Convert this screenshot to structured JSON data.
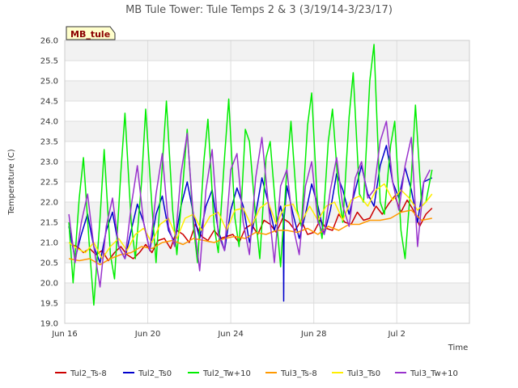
{
  "chart_data": {
    "type": "line",
    "title": "MB Tule Tower: Tule Temps 2 & 3 (3/19/14-3/23/17)",
    "xlabel": "Time",
    "ylabel": "Temperature (C)",
    "badge": "MB_tule",
    "xlim": [
      0,
      19.5
    ],
    "ylim": [
      19.0,
      26.0
    ],
    "y_ticks": [
      "19.0",
      "19.5",
      "20.0",
      "20.5",
      "21.0",
      "21.5",
      "22.0",
      "22.5",
      "23.0",
      "23.5",
      "24.0",
      "24.5",
      "25.0",
      "25.5",
      "26.0"
    ],
    "x_ticks": [
      {
        "label": "Jun 16",
        "x": 0
      },
      {
        "label": "Jun 20",
        "x": 4
      },
      {
        "label": "Jun 24",
        "x": 8
      },
      {
        "label": "Jun 28",
        "x": 12
      },
      {
        "label": "Jul 2",
        "x": 16
      }
    ],
    "grid": true,
    "legend_position": "bottom",
    "series": [
      {
        "name": "Tul2_Ts-8",
        "color": "#cc0000",
        "x": [
          0.3,
          0.6,
          0.9,
          1.2,
          1.5,
          1.8,
          2.1,
          2.4,
          2.7,
          3.0,
          3.3,
          3.6,
          3.9,
          4.2,
          4.5,
          4.8,
          5.1,
          5.4,
          5.7,
          6.0,
          6.3,
          6.6,
          6.9,
          7.2,
          7.5,
          7.8,
          8.1,
          8.4,
          8.7,
          9.0,
          9.3,
          9.6,
          9.9,
          10.2,
          10.5,
          10.8,
          11.1,
          11.4,
          11.7,
          12.0,
          12.3,
          12.6,
          12.9,
          13.2,
          13.5,
          13.8,
          14.1,
          14.4,
          14.7,
          15.0,
          15.3,
          15.6,
          15.9,
          16.2,
          16.5,
          16.8,
          17.1,
          17.4,
          17.7
        ],
        "y": [
          20.95,
          20.9,
          20.75,
          20.85,
          20.7,
          20.8,
          20.55,
          20.75,
          20.9,
          20.7,
          20.6,
          20.75,
          20.95,
          20.75,
          21.05,
          21.1,
          20.85,
          21.3,
          21.2,
          21.0,
          21.45,
          21.15,
          21.05,
          21.3,
          21.1,
          21.15,
          21.2,
          21.0,
          21.35,
          21.45,
          21.2,
          21.55,
          21.45,
          21.25,
          21.6,
          21.5,
          21.3,
          21.55,
          21.2,
          21.25,
          21.55,
          21.35,
          21.3,
          21.7,
          21.5,
          21.45,
          21.75,
          21.55,
          21.6,
          21.9,
          21.7,
          21.95,
          22.15,
          21.75,
          22.05,
          21.8,
          21.4,
          21.7,
          21.85
        ]
      },
      {
        "name": "Tul2_Ts0",
        "color": "#0000cc",
        "x": [
          0.2,
          0.5,
          0.8,
          1.1,
          1.4,
          1.7,
          2.0,
          2.3,
          2.6,
          2.9,
          3.2,
          3.5,
          3.8,
          4.1,
          4.4,
          4.7,
          5.0,
          5.3,
          5.6,
          5.9,
          6.2,
          6.5,
          6.8,
          7.1,
          7.4,
          7.7,
          8.0,
          8.3,
          8.6,
          8.9,
          9.2,
          9.5,
          9.8,
          10.1,
          10.4,
          10.7,
          11.0,
          11.3,
          11.6,
          11.9,
          12.2,
          12.5,
          12.8,
          13.1,
          13.4,
          13.7,
          14.0,
          14.3,
          14.6,
          14.9,
          15.2,
          15.5,
          15.8,
          16.1,
          16.4,
          16.7,
          17.0,
          17.3,
          17.7
        ],
        "y": [
          21.4,
          20.6,
          21.2,
          21.7,
          20.9,
          20.5,
          21.3,
          21.75,
          20.9,
          20.6,
          21.3,
          21.95,
          21.5,
          20.8,
          21.7,
          22.15,
          21.3,
          21.0,
          21.9,
          22.5,
          21.7,
          21.1,
          21.9,
          22.3,
          21.3,
          20.8,
          21.8,
          22.35,
          21.9,
          21.0,
          21.7,
          22.6,
          22.0,
          21.3,
          21.9,
          22.4,
          21.7,
          21.1,
          21.7,
          22.45,
          21.9,
          21.2,
          21.8,
          22.7,
          22.3,
          21.7,
          22.3,
          22.9,
          22.2,
          21.9,
          22.9,
          23.4,
          22.5,
          22.1,
          22.85,
          22.3,
          21.5,
          22.5,
          22.6
        ]
      },
      {
        "name": "Tul2_Tw+10",
        "color": "#00ee00",
        "x": [
          0.2,
          0.4,
          0.7,
          0.9,
          1.2,
          1.4,
          1.7,
          1.9,
          2.2,
          2.4,
          2.7,
          2.9,
          3.2,
          3.4,
          3.7,
          3.9,
          4.2,
          4.4,
          4.7,
          4.9,
          5.2,
          5.4,
          5.7,
          5.9,
          6.2,
          6.4,
          6.7,
          6.9,
          7.2,
          7.4,
          7.7,
          7.9,
          8.2,
          8.4,
          8.7,
          8.9,
          9.2,
          9.4,
          9.7,
          9.9,
          10.2,
          10.4,
          10.7,
          10.9,
          11.2,
          11.4,
          11.7,
          11.9,
          12.2,
          12.4,
          12.7,
          12.9,
          13.2,
          13.4,
          13.7,
          13.9,
          14.2,
          14.4,
          14.7,
          14.9,
          15.2,
          15.4,
          15.7,
          15.9,
          16.2,
          16.4,
          16.7,
          16.9,
          17.2,
          17.4,
          17.7
        ],
        "y": [
          21.5,
          20.0,
          22.1,
          23.1,
          20.8,
          19.45,
          21.6,
          23.3,
          20.7,
          20.1,
          22.7,
          24.2,
          21.5,
          20.6,
          22.5,
          24.3,
          21.9,
          20.5,
          22.9,
          24.5,
          21.8,
          20.7,
          22.5,
          23.8,
          21.4,
          20.5,
          23.0,
          24.05,
          21.4,
          20.75,
          23.1,
          24.55,
          21.6,
          20.9,
          23.8,
          23.5,
          21.6,
          20.6,
          23.1,
          23.5,
          21.6,
          20.4,
          22.8,
          24.0,
          21.8,
          21.4,
          23.9,
          24.7,
          21.7,
          21.1,
          23.5,
          24.3,
          22.2,
          21.5,
          24.1,
          25.2,
          22.2,
          22.0,
          25.0,
          25.9,
          22.0,
          21.7,
          23.4,
          24.0,
          21.3,
          20.6,
          22.6,
          24.4,
          21.9,
          22.0,
          22.8
        ]
      },
      {
        "name": "Tul3_Ts-8",
        "color": "#ff9900",
        "x": [
          0.2,
          0.7,
          1.2,
          1.7,
          2.2,
          2.7,
          3.2,
          3.7,
          4.2,
          4.7,
          5.2,
          5.7,
          6.2,
          6.7,
          7.2,
          7.7,
          8.2,
          8.7,
          9.2,
          9.7,
          10.2,
          10.7,
          11.2,
          11.7,
          12.2,
          12.7,
          13.2,
          13.7,
          14.2,
          14.7,
          15.2,
          15.7,
          16.2,
          16.7,
          17.2,
          17.7
        ],
        "y": [
          20.6,
          20.55,
          20.6,
          20.45,
          20.6,
          20.7,
          20.75,
          20.9,
          20.85,
          21.0,
          21.05,
          20.95,
          21.1,
          21.05,
          21.0,
          21.1,
          21.15,
          21.1,
          21.25,
          21.2,
          21.3,
          21.3,
          21.25,
          21.35,
          21.2,
          21.4,
          21.3,
          21.45,
          21.45,
          21.55,
          21.55,
          21.6,
          21.75,
          21.8,
          21.55,
          21.6
        ]
      },
      {
        "name": "Tul3_Ts0",
        "color": "#ffee00",
        "x": [
          0.2,
          0.6,
          1.0,
          1.4,
          1.8,
          2.2,
          2.6,
          3.0,
          3.4,
          3.8,
          4.2,
          4.6,
          5.0,
          5.4,
          5.8,
          6.2,
          6.6,
          7.0,
          7.4,
          7.8,
          8.2,
          8.6,
          9.0,
          9.4,
          9.8,
          10.2,
          10.6,
          11.0,
          11.4,
          11.8,
          12.2,
          12.6,
          13.0,
          13.4,
          13.8,
          14.2,
          14.6,
          15.0,
          15.4,
          15.8,
          16.2,
          16.6,
          17.0,
          17.4,
          17.7
        ],
        "y": [
          21.0,
          20.85,
          20.75,
          21.0,
          20.6,
          20.9,
          21.1,
          20.8,
          21.2,
          21.35,
          21.0,
          21.45,
          21.6,
          21.1,
          21.6,
          21.7,
          21.3,
          21.65,
          21.75,
          21.3,
          21.8,
          21.85,
          21.4,
          21.85,
          22.0,
          21.45,
          21.9,
          21.95,
          21.5,
          21.9,
          21.55,
          21.9,
          22.0,
          21.55,
          22.05,
          22.15,
          21.9,
          22.3,
          22.45,
          22.05,
          22.3,
          22.1,
          21.8,
          22.0,
          22.2
        ]
      },
      {
        "name": "Tul3_Tw+10",
        "color": "#9933cc",
        "x": [
          0.2,
          0.5,
          0.8,
          1.1,
          1.4,
          1.7,
          2.0,
          2.3,
          2.6,
          2.9,
          3.2,
          3.5,
          3.8,
          4.1,
          4.4,
          4.7,
          5.0,
          5.3,
          5.6,
          5.9,
          6.2,
          6.5,
          6.8,
          7.1,
          7.4,
          7.7,
          8.0,
          8.3,
          8.6,
          8.9,
          9.2,
          9.5,
          9.8,
          10.1,
          10.4,
          10.7,
          11.0,
          11.3,
          11.6,
          11.9,
          12.2,
          12.5,
          12.8,
          13.1,
          13.4,
          13.7,
          14.0,
          14.3,
          14.6,
          14.9,
          15.2,
          15.5,
          15.8,
          16.1,
          16.4,
          16.7,
          17.0,
          17.3,
          17.6
        ],
        "y": [
          21.7,
          20.5,
          21.5,
          22.2,
          20.9,
          19.9,
          21.4,
          22.1,
          20.9,
          20.6,
          21.9,
          22.9,
          21.5,
          20.8,
          22.2,
          23.2,
          21.4,
          20.9,
          22.7,
          23.7,
          21.6,
          20.3,
          22.3,
          23.3,
          21.2,
          20.8,
          22.8,
          23.2,
          21.5,
          20.7,
          22.6,
          23.6,
          22.0,
          20.5,
          22.4,
          22.8,
          21.4,
          20.7,
          22.4,
          23.0,
          21.5,
          21.2,
          22.3,
          23.1,
          21.9,
          21.4,
          22.6,
          23.0,
          22.1,
          22.3,
          23.5,
          24.0,
          22.5,
          21.8,
          22.9,
          23.6,
          20.9,
          22.5,
          22.8
        ]
      }
    ],
    "annotations": [
      {
        "series": "Tul2_Ts0",
        "type": "spike",
        "x": 10.55,
        "from": 21.6,
        "to": 19.55
      }
    ]
  }
}
